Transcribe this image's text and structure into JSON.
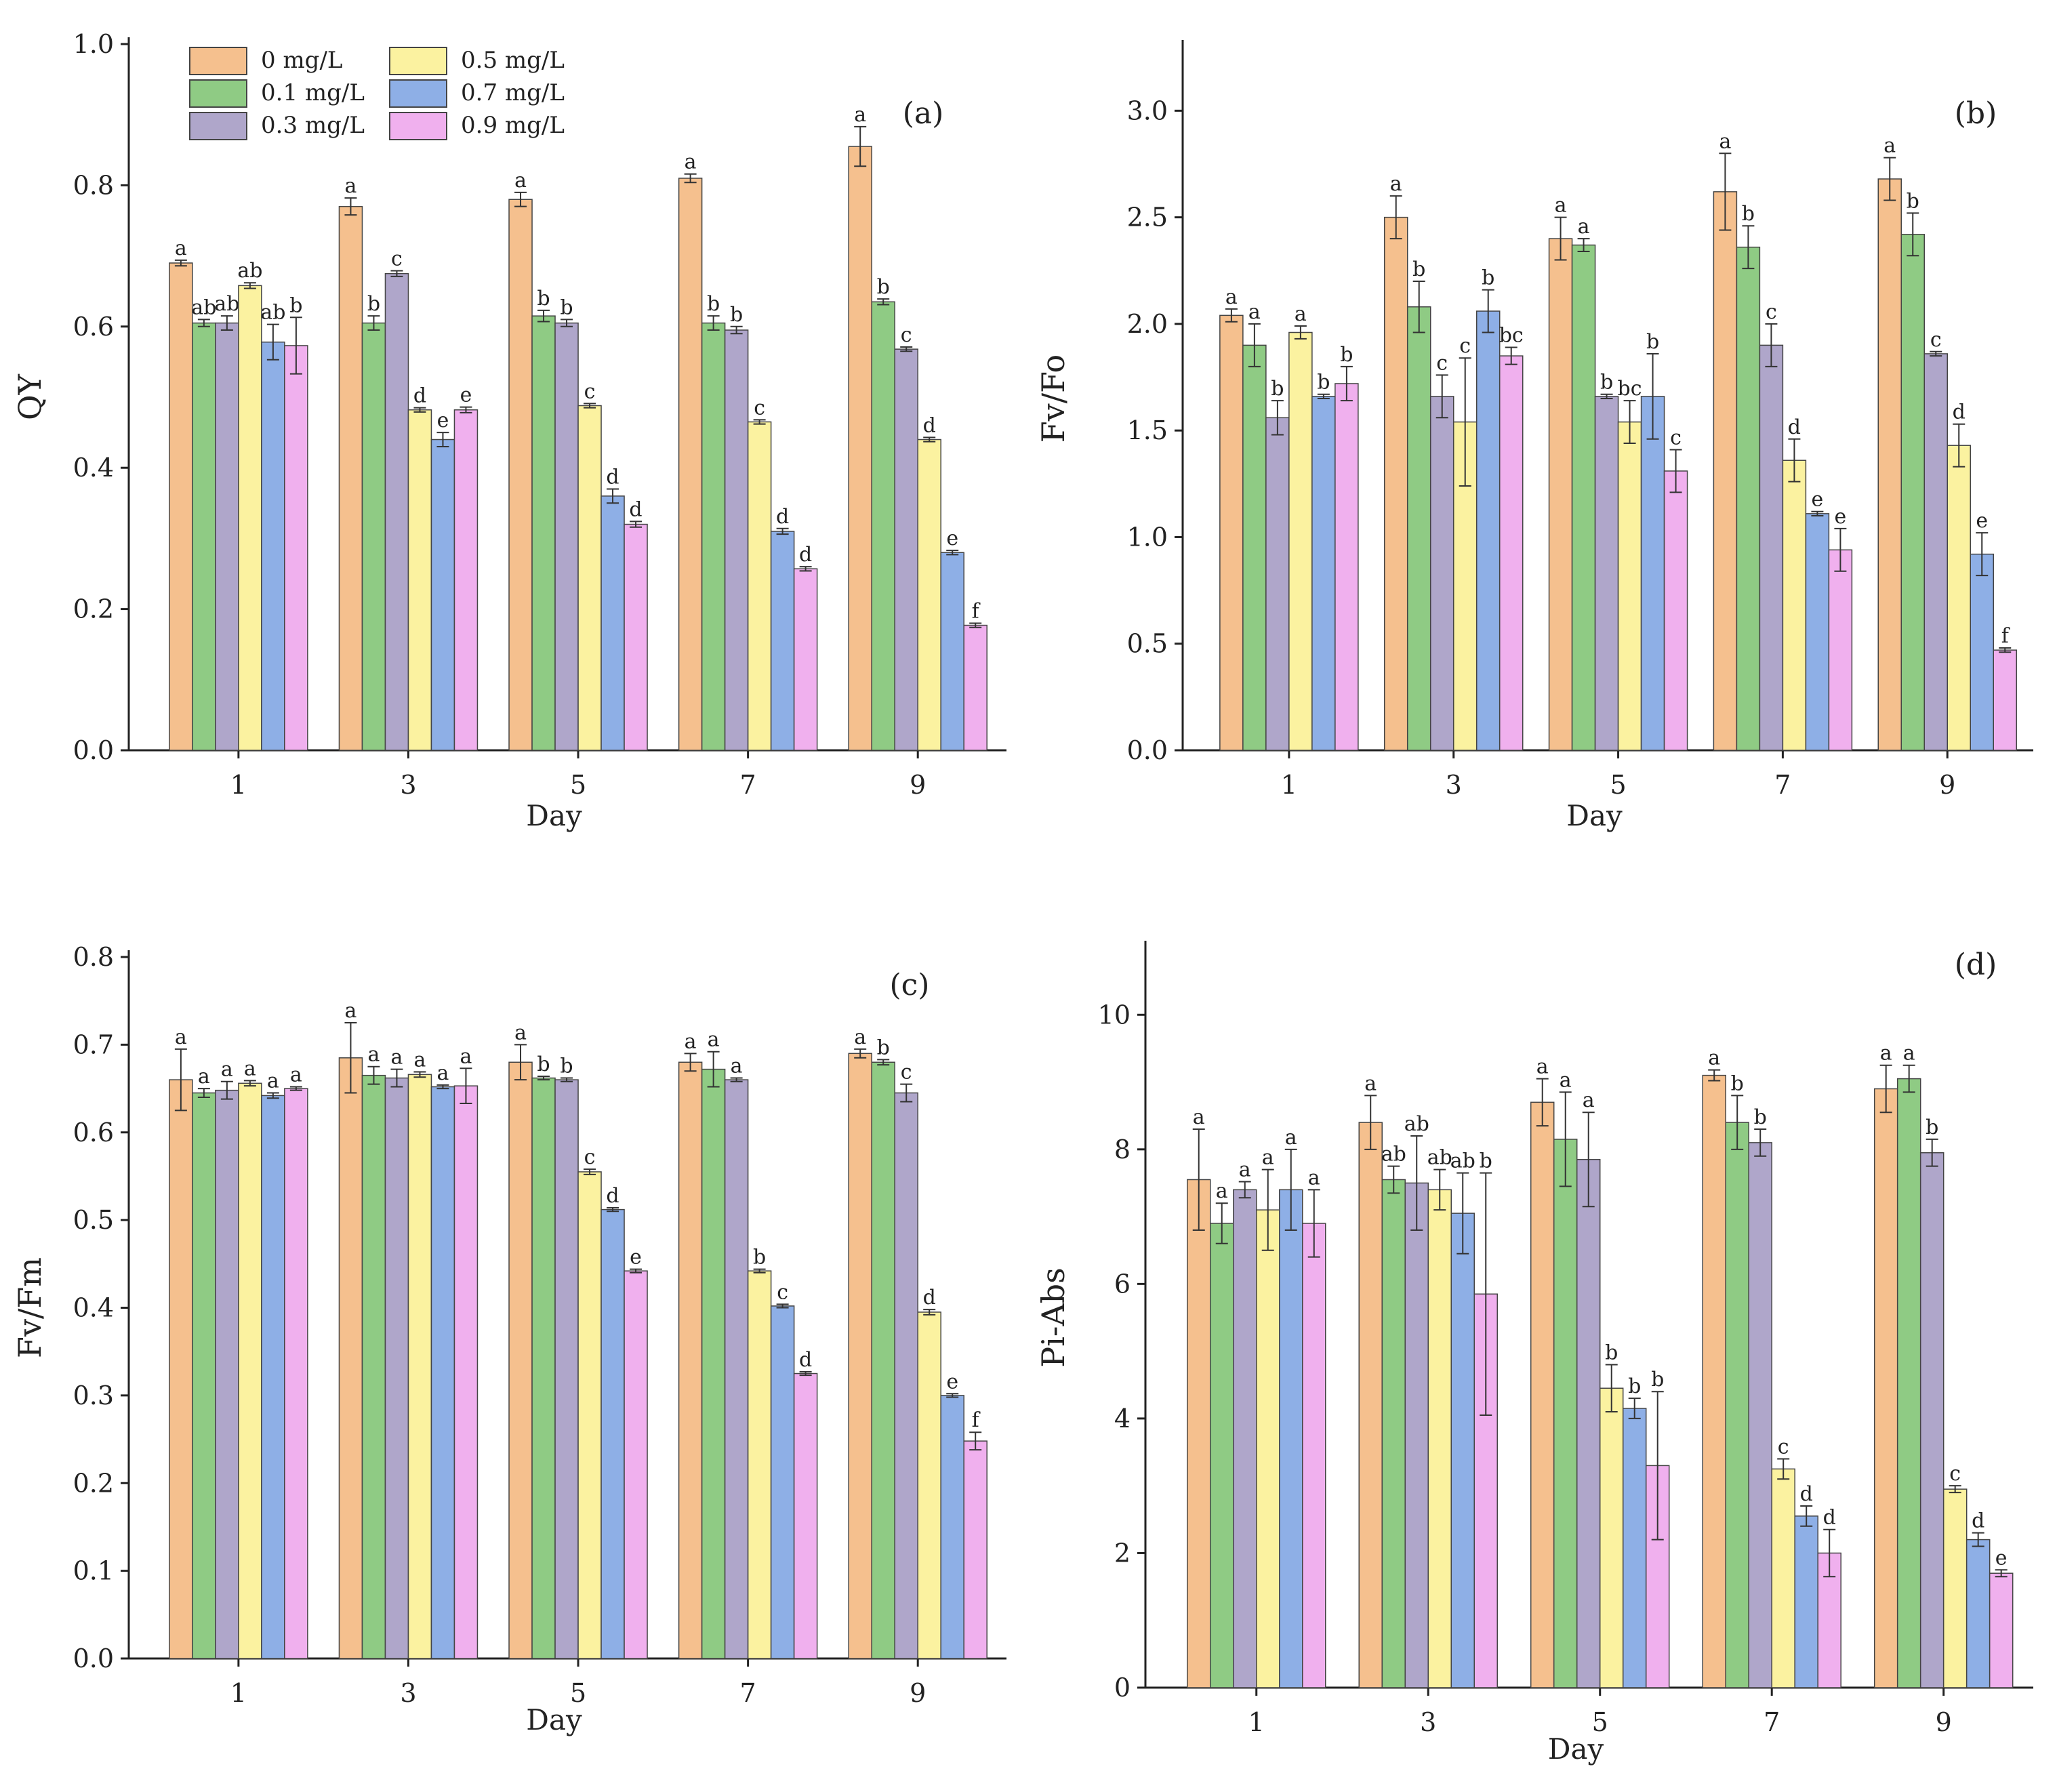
{
  "legend": {
    "entries": [
      "0 mg/L",
      "0.1 mg/L",
      "0.3 mg/L",
      "0.5 mg/L",
      "0.7 mg/L",
      "0.9 mg/L"
    ],
    "colors": [
      "#F5C08E",
      "#8FCB84",
      "#AFA6CA",
      "#FBF2A0",
      "#8EAFE6",
      "#F0B0EE"
    ],
    "stroke": "#444444"
  },
  "chart_data": [
    {
      "panel": "(a)",
      "type": "bar",
      "ylabel": "QY",
      "xlabel": "Day",
      "categories": [
        "1",
        "3",
        "5",
        "7",
        "9"
      ],
      "ylim": [
        0,
        1.0
      ],
      "yticks": [
        "0.0",
        "0.2",
        "0.4",
        "0.6",
        "0.8",
        "1.0"
      ],
      "series": [
        {
          "name": "0 mg/L",
          "values": [
            0.69,
            0.77,
            0.78,
            0.81,
            0.855
          ],
          "errors": [
            0.004,
            0.012,
            0.01,
            0.006,
            0.028
          ],
          "labels": [
            "a",
            "a",
            "a",
            "a",
            "a"
          ]
        },
        {
          "name": "0.1 mg/L",
          "values": [
            0.605,
            0.605,
            0.615,
            0.605,
            0.635
          ],
          "errors": [
            0.005,
            0.01,
            0.008,
            0.01,
            0.004
          ],
          "labels": [
            "ab",
            "b",
            "b",
            "b",
            "b"
          ]
        },
        {
          "name": "0.3 mg/L",
          "values": [
            0.605,
            0.675,
            0.605,
            0.595,
            0.568
          ],
          "errors": [
            0.01,
            0.004,
            0.005,
            0.005,
            0.003
          ],
          "labels": [
            "ab",
            "c",
            "b",
            "b",
            "c"
          ]
        },
        {
          "name": "0.5 mg/L",
          "values": [
            0.658,
            0.482,
            0.488,
            0.465,
            0.44
          ],
          "errors": [
            0.004,
            0.003,
            0.003,
            0.003,
            0.003
          ],
          "labels": [
            "ab",
            "d",
            "c",
            "c",
            "d"
          ]
        },
        {
          "name": "0.7 mg/L",
          "values": [
            0.578,
            0.44,
            0.36,
            0.31,
            0.28
          ],
          "errors": [
            0.025,
            0.01,
            0.01,
            0.004,
            0.003
          ],
          "labels": [
            "ab",
            "e",
            "d",
            "d",
            "e"
          ]
        },
        {
          "name": "0.9 mg/L",
          "values": [
            0.573,
            0.482,
            0.32,
            0.257,
            0.177
          ],
          "errors": [
            0.04,
            0.004,
            0.004,
            0.003,
            0.003
          ],
          "labels": [
            "b",
            "e",
            "d",
            "d",
            "f"
          ]
        }
      ]
    },
    {
      "panel": "(b)",
      "type": "bar",
      "ylabel": "Fv/Fo",
      "xlabel": "Day",
      "categories": [
        "1",
        "3",
        "5",
        "7",
        "9"
      ],
      "ylim": [
        0,
        3.3
      ],
      "yticks": [
        "0.0",
        "0.5",
        "1.0",
        "1.5",
        "2.0",
        "2.5",
        "3.0"
      ],
      "series": [
        {
          "name": "0 mg/L",
          "values": [
            2.04,
            2.5,
            2.4,
            2.62,
            2.68
          ],
          "errors": [
            0.03,
            0.1,
            0.1,
            0.18,
            0.1
          ],
          "labels": [
            "a",
            "a",
            "a",
            "a",
            "a"
          ]
        },
        {
          "name": "0.1 mg/L",
          "values": [
            1.9,
            2.08,
            2.37,
            2.36,
            2.42
          ],
          "errors": [
            0.1,
            0.12,
            0.03,
            0.1,
            0.1
          ],
          "labels": [
            "a",
            "b",
            "a",
            "b",
            "b"
          ]
        },
        {
          "name": "0.3 mg/L",
          "values": [
            1.56,
            1.66,
            1.66,
            1.9,
            1.86
          ],
          "errors": [
            0.08,
            0.1,
            0.01,
            0.1,
            0.01
          ],
          "labels": [
            "b",
            "c",
            "b",
            "c",
            "c"
          ]
        },
        {
          "name": "0.5 mg/L",
          "values": [
            1.96,
            1.54,
            1.54,
            1.36,
            1.43
          ],
          "errors": [
            0.03,
            0.3,
            0.1,
            0.1,
            0.1
          ],
          "labels": [
            "a",
            "c",
            "bc",
            "d",
            "d"
          ]
        },
        {
          "name": "0.7 mg/L",
          "values": [
            1.66,
            2.06,
            1.66,
            1.11,
            0.92
          ],
          "errors": [
            0.01,
            0.1,
            0.2,
            0.01,
            0.1
          ],
          "labels": [
            "b",
            "b",
            "b",
            "e",
            "e"
          ]
        },
        {
          "name": "0.9 mg/L",
          "values": [
            1.72,
            1.85,
            1.31,
            0.94,
            0.47
          ],
          "errors": [
            0.08,
            0.04,
            0.1,
            0.1,
            0.01
          ],
          "labels": [
            "b",
            "bc",
            "c",
            "e",
            "f"
          ]
        }
      ]
    },
    {
      "panel": "(c)",
      "type": "bar",
      "ylabel": "Fv/Fm",
      "xlabel": "Day",
      "categories": [
        "1",
        "3",
        "5",
        "7",
        "9"
      ],
      "ylim": [
        0,
        0.8
      ],
      "yticks": [
        "0.0",
        "0.1",
        "0.2",
        "0.3",
        "0.4",
        "0.5",
        "0.6",
        "0.7",
        "0.8"
      ],
      "series": [
        {
          "name": "0 mg/L",
          "values": [
            0.66,
            0.685,
            0.68,
            0.68,
            0.69
          ],
          "errors": [
            0.035,
            0.04,
            0.02,
            0.01,
            0.005
          ],
          "labels": [
            "a",
            "a",
            "a",
            "a",
            "a"
          ]
        },
        {
          "name": "0.1 mg/L",
          "values": [
            0.645,
            0.665,
            0.662,
            0.672,
            0.68
          ],
          "errors": [
            0.005,
            0.01,
            0.002,
            0.02,
            0.003
          ],
          "labels": [
            "a",
            "a",
            "b",
            "a",
            "b"
          ]
        },
        {
          "name": "0.3 mg/L",
          "values": [
            0.648,
            0.662,
            0.66,
            0.66,
            0.645
          ],
          "errors": [
            0.01,
            0.01,
            0.002,
            0.002,
            0.01
          ],
          "labels": [
            "a",
            "a",
            "b",
            "a",
            "c"
          ]
        },
        {
          "name": "0.5 mg/L",
          "values": [
            0.656,
            0.666,
            0.555,
            0.442,
            0.395
          ],
          "errors": [
            0.003,
            0.003,
            0.003,
            0.002,
            0.003
          ],
          "labels": [
            "a",
            "a",
            "c",
            "b",
            "d"
          ]
        },
        {
          "name": "0.7 mg/L",
          "values": [
            0.642,
            0.652,
            0.512,
            0.402,
            0.3
          ],
          "errors": [
            0.003,
            0.002,
            0.002,
            0.002,
            0.002
          ],
          "labels": [
            "a",
            "a",
            "d",
            "c",
            "e"
          ]
        },
        {
          "name": "0.9 mg/L",
          "values": [
            0.65,
            0.653,
            0.442,
            0.325,
            0.248
          ],
          "errors": [
            0.002,
            0.02,
            0.002,
            0.002,
            0.01
          ],
          "labels": [
            "a",
            "a",
            "e",
            "d",
            "f"
          ]
        }
      ]
    },
    {
      "panel": "(d)",
      "type": "bar",
      "ylabel": "Pi-Abs",
      "xlabel": "Day",
      "categories": [
        "1",
        "3",
        "5",
        "7",
        "9"
      ],
      "ylim": [
        0,
        11
      ],
      "yticks": [
        "0",
        "2",
        "4",
        "6",
        "8",
        "10"
      ],
      "series": [
        {
          "name": "0 mg/L",
          "values": [
            7.55,
            8.4,
            8.7,
            9.1,
            8.9
          ],
          "errors": [
            0.75,
            0.4,
            0.35,
            0.08,
            0.35
          ],
          "labels": [
            "a",
            "a",
            "a",
            "a",
            "a"
          ]
        },
        {
          "name": "0.1 mg/L",
          "values": [
            6.9,
            7.55,
            8.15,
            8.4,
            9.05
          ],
          "errors": [
            0.3,
            0.2,
            0.7,
            0.4,
            0.2
          ],
          "labels": [
            "a",
            "ab",
            "a",
            "b",
            "a"
          ]
        },
        {
          "name": "0.3 mg/L",
          "values": [
            7.4,
            7.5,
            7.85,
            8.1,
            7.95
          ],
          "errors": [
            0.12,
            0.7,
            0.7,
            0.2,
            0.2
          ],
          "labels": [
            "a",
            "ab",
            "a",
            "b",
            "b"
          ]
        },
        {
          "name": "0.5 mg/L",
          "values": [
            7.1,
            7.4,
            4.45,
            3.25,
            2.95
          ],
          "errors": [
            0.6,
            0.3,
            0.35,
            0.15,
            0.05
          ],
          "labels": [
            "a",
            "ab",
            "b",
            "c",
            "c"
          ]
        },
        {
          "name": "0.7 mg/L",
          "values": [
            7.4,
            7.05,
            4.15,
            2.55,
            2.2
          ],
          "errors": [
            0.6,
            0.6,
            0.15,
            0.15,
            0.1
          ],
          "labels": [
            "a",
            "ab",
            "b",
            "d",
            "d"
          ]
        },
        {
          "name": "0.9 mg/L",
          "values": [
            6.9,
            5.85,
            3.3,
            2.0,
            1.7
          ],
          "errors": [
            0.5,
            1.8,
            1.1,
            0.35,
            0.05
          ],
          "labels": [
            "a",
            "b",
            "b",
            "d",
            "e"
          ]
        }
      ]
    }
  ]
}
